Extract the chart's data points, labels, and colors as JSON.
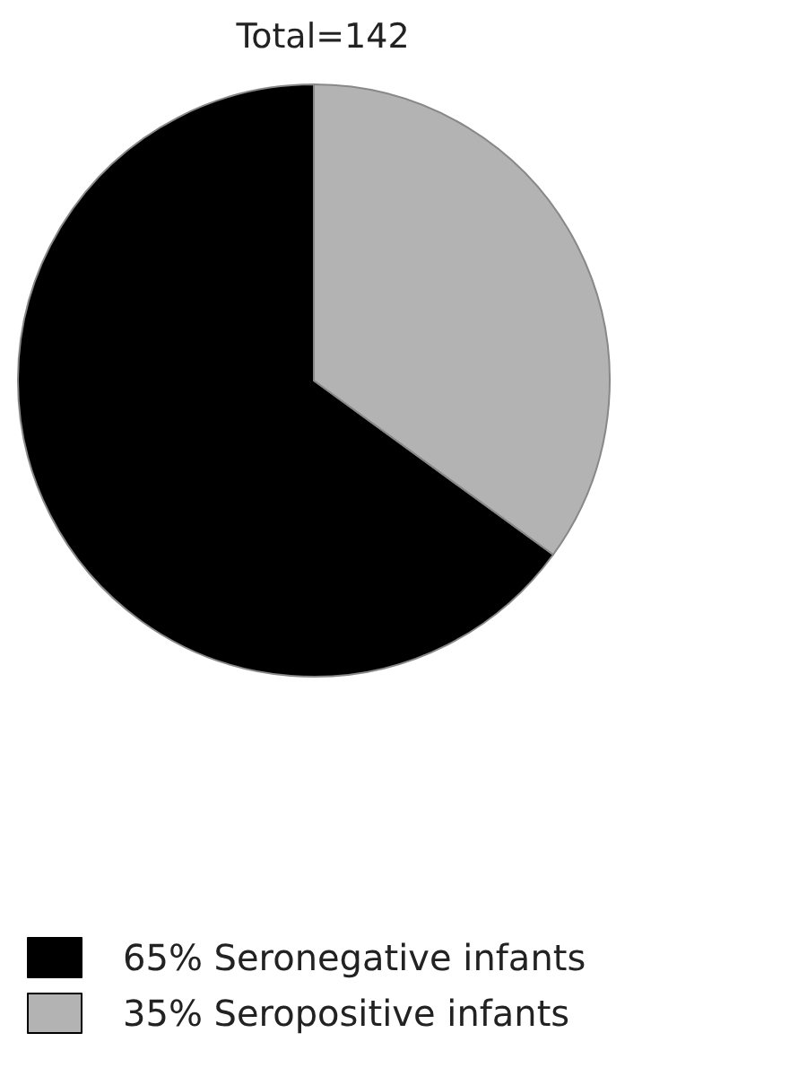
{
  "chart_data": {
    "type": "pie",
    "title": "Total=142",
    "categories": [
      "65% Seronegative infants",
      "35% Seropositive infants"
    ],
    "values": [
      65,
      35
    ],
    "colors": [
      "#000000",
      "#b3b3b3"
    ],
    "legend": "bottom left"
  }
}
